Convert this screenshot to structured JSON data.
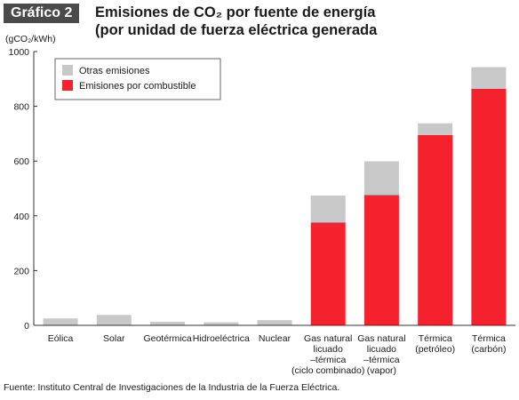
{
  "badge": "Gráfico 2",
  "title_line1": "Emisiones de CO₂ por fuente de energía",
  "title_line2": "(por unidad de fuerza eléctrica generada",
  "unit": "(gCO₂/kWh)",
  "source": "Fuente: Instituto Central de Investigaciones de la Industria de la Fuerza Eléctrica.",
  "colors": {
    "otras": "#c8c8c8",
    "combustible": "#f5222d"
  },
  "chart_data": {
    "type": "bar",
    "stacked": true,
    "categories": [
      [
        "Eólica"
      ],
      [
        "Solar"
      ],
      [
        "Geotérmica"
      ],
      [
        "Hidroeléctrica"
      ],
      [
        "Nuclear"
      ],
      [
        "Gas natural",
        "licuado",
        "–térmica",
        "(ciclo combinado)"
      ],
      [
        "Gas natural",
        "licuado",
        "–térmica",
        "(vapor)"
      ],
      [
        "Térmica",
        "(petróleo)"
      ],
      [
        "Térmica",
        "(carbón)"
      ]
    ],
    "series": [
      {
        "name": "Emisiones por combustible",
        "values": [
          0,
          0,
          0,
          0,
          0,
          376,
          476,
          695,
          864
        ]
      },
      {
        "name": "Otras emisiones",
        "values": [
          25,
          38,
          13,
          11,
          19,
          98,
          123,
          43,
          79
        ]
      }
    ],
    "ylim": [
      0,
      1000
    ],
    "yticks": [
      0,
      200,
      400,
      600,
      800,
      1000
    ],
    "legend_position": "top-left",
    "grid": false
  }
}
